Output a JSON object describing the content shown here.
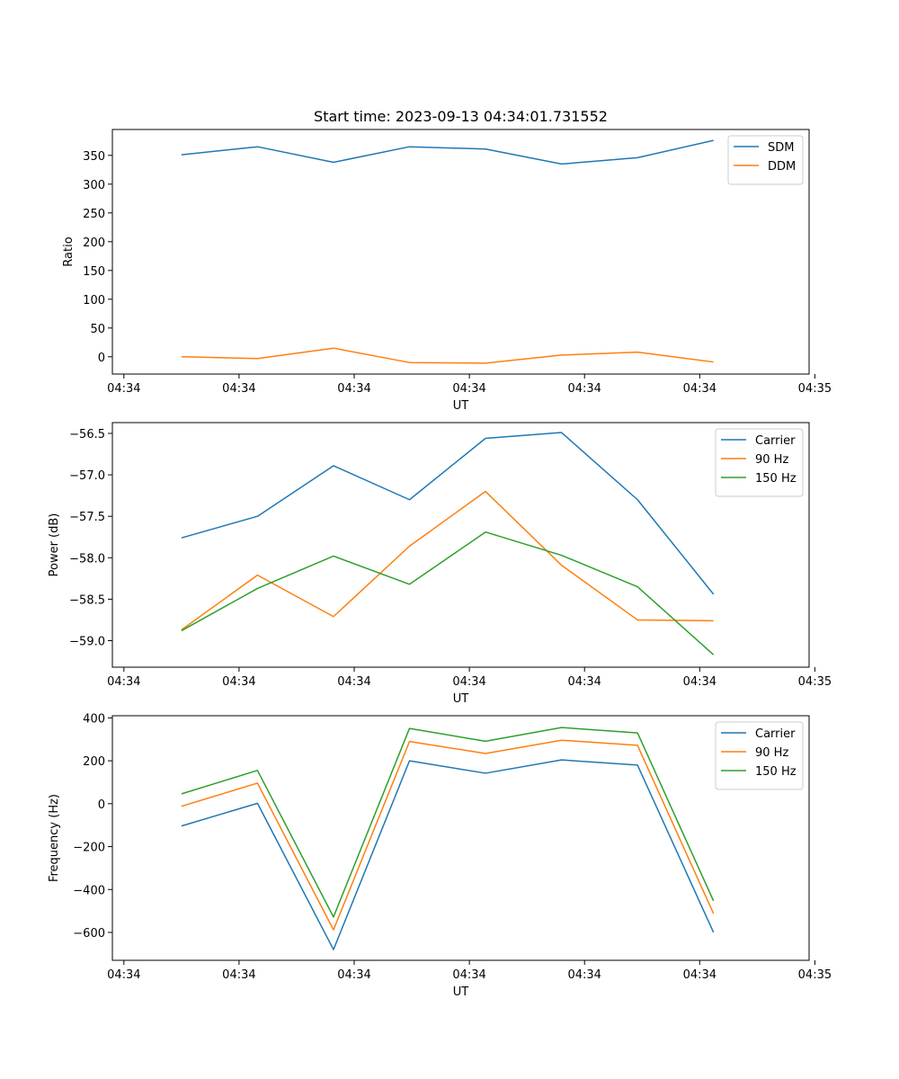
{
  "chart_data": [
    {
      "type": "line",
      "title": "Start time: 2023-09-13 04:34:01.731552",
      "xlabel": "UT",
      "ylabel": "Ratio",
      "x": [
        0.5,
        1.16,
        1.82,
        2.48,
        3.14,
        3.8,
        4.46,
        5.12
      ],
      "xlim": [
        -0.1,
        5.95
      ],
      "x_ticks": [
        0,
        1,
        2,
        3,
        4,
        5,
        6
      ],
      "x_tick_labels": [
        "04:34",
        "04:34",
        "04:34",
        "04:34",
        "04:34",
        "04:34",
        "04:35"
      ],
      "ylim": [
        -30,
        395
      ],
      "y_ticks": [
        0,
        50,
        100,
        150,
        200,
        250,
        300,
        350
      ],
      "y_tick_labels": [
        "0",
        "50",
        "100",
        "150",
        "200",
        "250",
        "300",
        "350"
      ],
      "legend": "top-right",
      "series": [
        {
          "name": "SDM",
          "color": "#1f77b4",
          "values": [
            351,
            365,
            338,
            365,
            361,
            335,
            346,
            376
          ]
        },
        {
          "name": "DDM",
          "color": "#ff7f0e",
          "values": [
            0,
            -3,
            15,
            -10,
            -11,
            3,
            8,
            -9
          ]
        }
      ]
    },
    {
      "type": "line",
      "title": "",
      "xlabel": "UT",
      "ylabel": "Power (dB)",
      "x": [
        0.5,
        1.16,
        1.82,
        2.48,
        3.14,
        3.8,
        4.46,
        5.12
      ],
      "xlim": [
        -0.1,
        5.95
      ],
      "x_ticks": [
        0,
        1,
        2,
        3,
        4,
        5,
        6
      ],
      "x_tick_labels": [
        "04:34",
        "04:34",
        "04:34",
        "04:34",
        "04:34",
        "04:34",
        "04:35"
      ],
      "ylim": [
        -59.32,
        -56.37
      ],
      "y_ticks": [
        -59.0,
        -58.5,
        -58.0,
        -57.5,
        -57.0,
        -56.5
      ],
      "y_tick_labels": [
        "−59.0",
        "−58.5",
        "−58.0",
        "−57.5",
        "−57.0",
        "−56.5"
      ],
      "legend": "top-right",
      "series": [
        {
          "name": "Carrier",
          "color": "#1f77b4",
          "values": [
            -57.76,
            -57.5,
            -56.89,
            -57.3,
            -56.56,
            -56.49,
            -57.3,
            -58.44
          ]
        },
        {
          "name": "90 Hz",
          "color": "#ff7f0e",
          "values": [
            -58.87,
            -58.21,
            -58.71,
            -57.86,
            -57.2,
            -58.09,
            -58.75,
            -58.76
          ]
        },
        {
          "name": "150 Hz",
          "color": "#2ca02c",
          "values": [
            -58.88,
            -58.37,
            -57.98,
            -58.32,
            -57.69,
            -57.97,
            -58.35,
            -59.17
          ]
        }
      ]
    },
    {
      "type": "line",
      "title": "",
      "xlabel": "UT",
      "ylabel": "Frequency (Hz)",
      "x": [
        0.5,
        1.16,
        1.82,
        2.48,
        3.14,
        3.8,
        4.46,
        5.12
      ],
      "xlim": [
        -0.1,
        5.95
      ],
      "x_ticks": [
        0,
        1,
        2,
        3,
        4,
        5,
        6
      ],
      "x_tick_labels": [
        "04:34",
        "04:34",
        "04:34",
        "04:34",
        "04:34",
        "04:34",
        "04:35"
      ],
      "ylim": [
        -730,
        410
      ],
      "y_ticks": [
        -600,
        -400,
        -200,
        0,
        200,
        400
      ],
      "y_tick_labels": [
        "−600",
        "−400",
        "−200",
        "0",
        "200",
        "400"
      ],
      "legend": "top-right",
      "series": [
        {
          "name": "Carrier",
          "color": "#1f77b4",
          "values": [
            -104,
            2,
            -680,
            200,
            142,
            204,
            180,
            -600
          ]
        },
        {
          "name": "90 Hz",
          "color": "#ff7f0e",
          "values": [
            -12,
            96,
            -588,
            290,
            234,
            296,
            272,
            -512
          ]
        },
        {
          "name": "150 Hz",
          "color": "#2ca02c",
          "values": [
            46,
            155,
            -528,
            351,
            291,
            355,
            330,
            -453
          ]
        }
      ]
    }
  ]
}
